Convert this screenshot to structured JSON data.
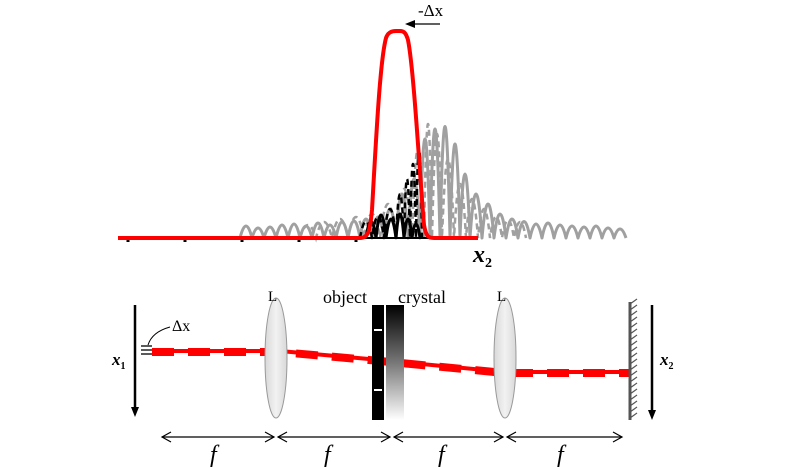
{
  "top_plot": {
    "shift_label": "-Δx",
    "axis_label_main": "x",
    "axis_label_sub": "2"
  },
  "setup": {
    "lens_left_label": "L",
    "lens_right_label": "L",
    "object_label": "object",
    "crystal_label": "crystal",
    "delta_label": "Δx",
    "input_axis_main": "x",
    "input_axis_sub": "1",
    "output_axis_main": "x",
    "output_axis_sub": "2",
    "focal_labels": [
      "f",
      "f",
      "f",
      "f"
    ]
  },
  "colors": {
    "beam": "#ff0000",
    "speckle_gray": "#a0a0a0",
    "axis": "#000000",
    "lens": "#e0e0e0"
  }
}
